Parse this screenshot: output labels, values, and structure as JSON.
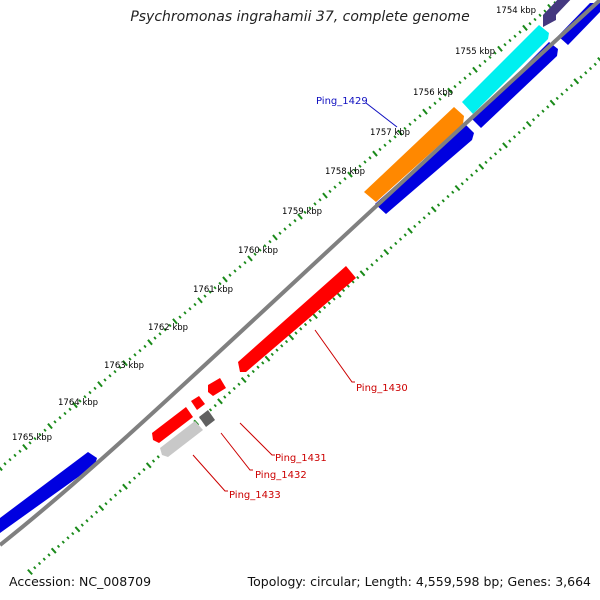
{
  "title": "Psychromonas ingrahamii 37, complete genome",
  "footer": {
    "accession": "Accession: NC_008709",
    "summary": "Topology: circular; Length: 4,559,598 bp; Genes: 3,664"
  },
  "colors": {
    "backbone": "#808080",
    "tick": "#1a8a1a",
    "forward_cds": "#0000e0",
    "rna_gene": "#00f0f0",
    "named_gene": "#ff8800",
    "reverse_cds": "#ff0000",
    "pseudo_dark": "#606060",
    "pseudo_light": "#c8c8c8",
    "purple_gene": "#443880"
  },
  "kbp_labels": [
    "1754 kbp",
    "1755 kbp",
    "1756 kbp",
    "1757 kbp",
    "1758 kbp",
    "1759 kbp",
    "1760 kbp",
    "1761 kbp",
    "1762 kbp",
    "1763 kbp",
    "1764 kbp",
    "1765 kbp"
  ],
  "gene_labels": [
    {
      "text": "Ping_1429",
      "color": "#1010c0"
    },
    {
      "text": "Ping_1430",
      "color": "#cc0000"
    },
    {
      "text": "Ping_1431",
      "color": "#cc0000"
    },
    {
      "text": "Ping_1432",
      "color": "#cc0000"
    },
    {
      "text": "Ping_1433",
      "color": "#cc0000"
    }
  ]
}
